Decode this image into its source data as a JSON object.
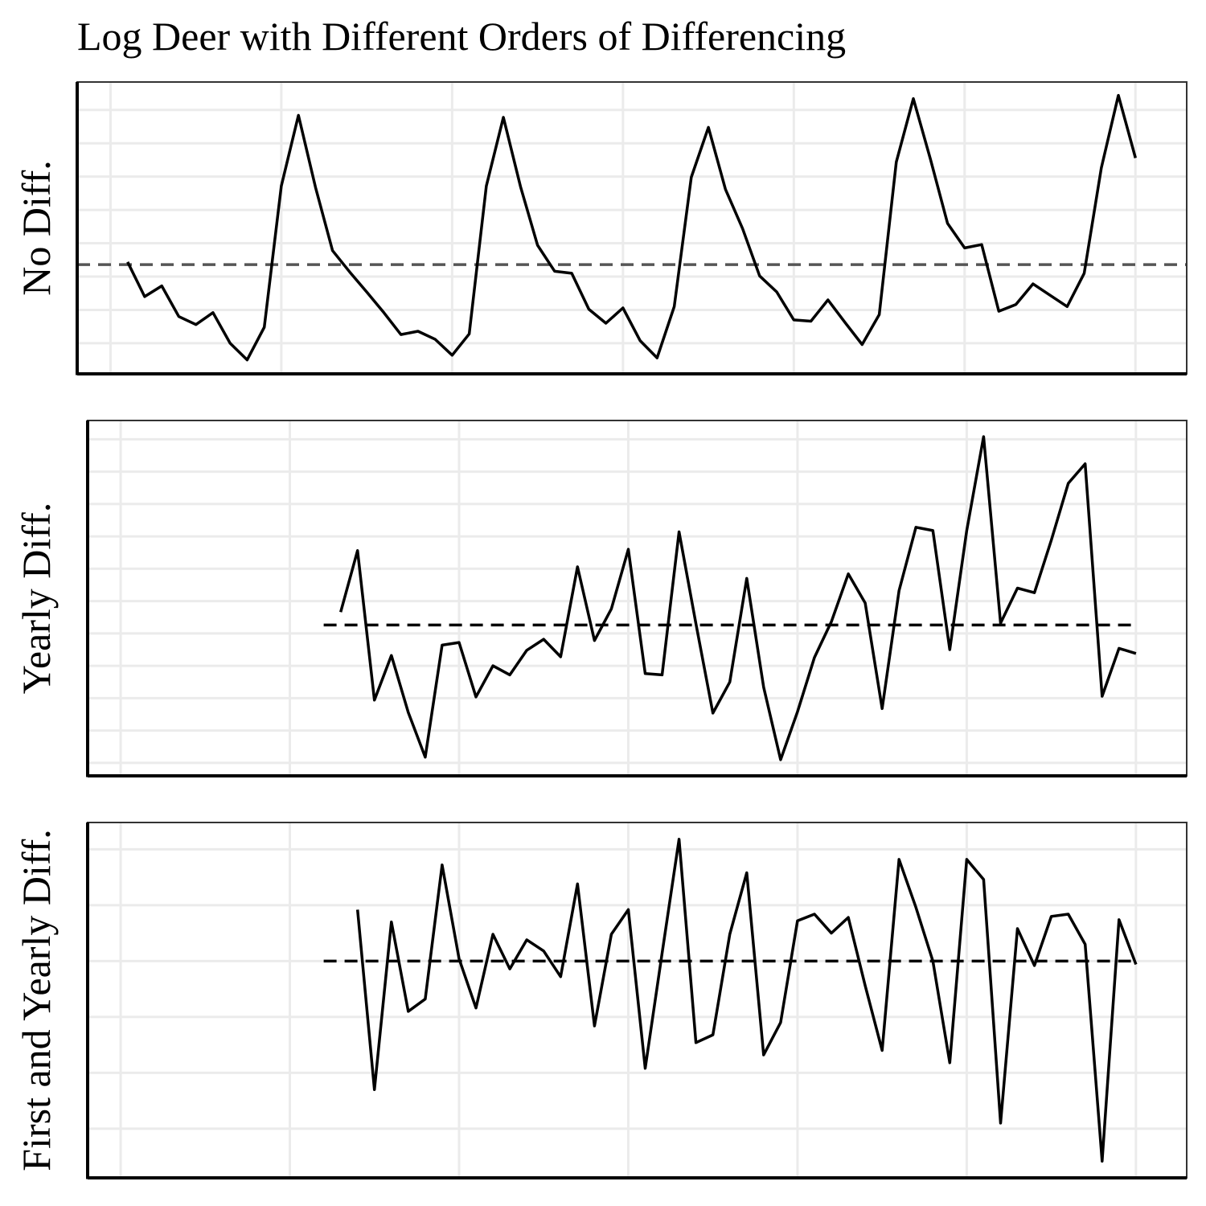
{
  "title": "Log Deer with Different Orders of Differencing",
  "chart_data": [
    {
      "type": "line",
      "ylabel": "No Diff.",
      "color": "#000000",
      "x": [
        1,
        2,
        3,
        4,
        5,
        6,
        7,
        8,
        9,
        10,
        11,
        12,
        13,
        14,
        15,
        16,
        17,
        18,
        19,
        20,
        21,
        22,
        23,
        24,
        25,
        26,
        27,
        28,
        29,
        30,
        31,
        32,
        33,
        34,
        35,
        36,
        37,
        38,
        39,
        40,
        41,
        42,
        43,
        44,
        45,
        46,
        47,
        48,
        49,
        50,
        51,
        52,
        53,
        54,
        55,
        56,
        57,
        58,
        59,
        60
      ],
      "values": [
        1.22,
        0.7,
        0.86,
        0.4,
        0.28,
        0.46,
        0,
        -0.25,
        0.24,
        2.36,
        3.42,
        2.34,
        1.39,
        1.07,
        0.77,
        0.46,
        0.13,
        0.18,
        0.06,
        -0.18,
        0.14,
        2.36,
        3.39,
        2.35,
        1.47,
        1.08,
        1.05,
        0.51,
        0.3,
        0.53,
        0.04,
        -0.22,
        0.55,
        2.49,
        3.24,
        2.31,
        1.72,
        1.01,
        0.77,
        0.35,
        0.33,
        0.65,
        0.31,
        -0.02,
        0.43,
        2.72,
        3.67,
        2.76,
        1.8,
        1.43,
        1.48,
        0.48,
        0.58,
        0.89,
        0.72,
        0.55,
        1.05,
        2.63,
        3.72,
        2.78
      ],
      "hline": {
        "value": 1.18,
        "color": "#555555"
      },
      "xlim": [
        -1.95,
        63
      ],
      "xticks": [
        0,
        10,
        20,
        30,
        40,
        50,
        60
      ],
      "ylim": [
        -0.46,
        3.92
      ],
      "yticks": [
        0,
        0.5,
        1,
        1.5,
        2,
        2.5,
        3,
        3.5
      ],
      "grid": true
    },
    {
      "type": "line",
      "ylabel": "Yearly Diff.",
      "color": "#000000",
      "x": [
        13,
        14,
        15,
        16,
        17,
        18,
        19,
        20,
        21,
        22,
        23,
        24,
        25,
        26,
        27,
        28,
        29,
        30,
        31,
        32,
        33,
        34,
        35,
        36,
        37,
        38,
        39,
        40,
        41,
        42,
        43,
        44,
        45,
        46,
        47,
        48,
        49,
        50,
        51,
        52,
        53,
        54,
        55,
        56,
        57,
        58,
        59,
        60
      ],
      "values": [
        2.33,
        3.28,
        0.97,
        1.66,
        0.78,
        0.09,
        1.82,
        1.86,
        1.02,
        1.5,
        1.36,
        1.74,
        1.91,
        1.64,
        3.03,
        1.89,
        2.38,
        3.3,
        1.38,
        1.36,
        3.57,
        2.15,
        0.77,
        1.25,
        2.85,
        1.17,
        0.05,
        0.79,
        1.63,
        2.18,
        2.92,
        2.47,
        0.84,
        2.66,
        3.64,
        3.59,
        1.75,
        3.59,
        5.04,
        2.16,
        2.7,
        2.63,
        3.44,
        4.32,
        4.62,
        1.03,
        1.77,
        1.69
      ],
      "hline": {
        "value": 2.13,
        "xlim": [
          12,
          60
        ],
        "color": "#000000"
      },
      "xlim": [
        -1.95,
        63
      ],
      "xticks": [
        0,
        10,
        20,
        30,
        40,
        50,
        60
      ],
      "ylim": [
        -0.2,
        5.29
      ],
      "yticks": [
        0,
        0.5,
        1,
        1.5,
        2,
        2.5,
        3,
        3.5,
        4,
        4.5,
        5
      ],
      "grid": true
    },
    {
      "type": "line",
      "ylabel": "First and Yearly Diff.",
      "color": "#000000",
      "x": [
        14,
        15,
        16,
        17,
        18,
        19,
        20,
        21,
        22,
        23,
        24,
        25,
        26,
        27,
        28,
        29,
        30,
        31,
        32,
        33,
        34,
        35,
        36,
        37,
        38,
        39,
        40,
        41,
        42,
        43,
        44,
        45,
        46,
        47,
        48,
        49,
        50,
        51,
        52,
        53,
        54,
        55,
        56,
        57,
        58,
        59,
        60
      ],
      "values": [
        0.46,
        -1.15,
        0.35,
        -0.45,
        -0.34,
        0.86,
        0.02,
        -0.42,
        0.24,
        -0.07,
        0.19,
        0.09,
        -0.14,
        0.69,
        -0.58,
        0.24,
        0.46,
        -0.96,
        0.07,
        1.09,
        -0.73,
        -0.66,
        0.24,
        0.79,
        -0.84,
        -0.55,
        0.36,
        0.42,
        0.25,
        0.39,
        -0.22,
        -0.8,
        0.91,
        0.48,
        0,
        -0.91,
        0.91,
        0.73,
        -1.45,
        0.29,
        -0.04,
        0.4,
        0.42,
        0.15,
        -1.79,
        0.37,
        -0.03
      ],
      "hline": {
        "value": 0,
        "xlim": [
          12,
          60
        ],
        "color": "#000000"
      },
      "xlim": [
        -1.95,
        63
      ],
      "xticks": [
        0,
        10,
        20,
        30,
        40,
        50,
        60
      ],
      "ylim": [
        -1.94,
        1.24
      ],
      "yticks": [
        -1.5,
        -1,
        -0.5,
        0,
        0.5,
        1
      ],
      "grid": true
    }
  ]
}
